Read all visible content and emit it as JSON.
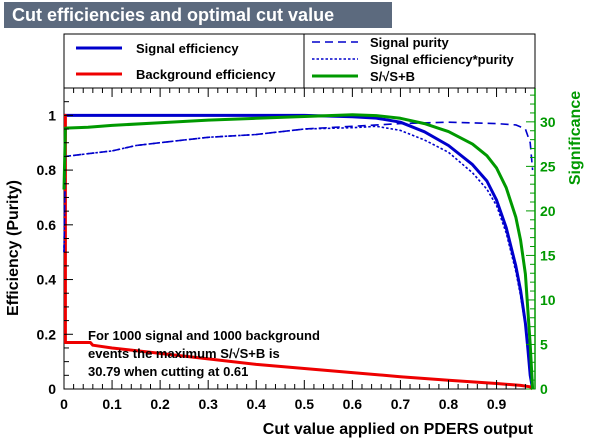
{
  "title": "Cut efficiencies and optimal cut value",
  "chart_data": {
    "type": "line",
    "xlabel": "Cut value applied on PDERS output",
    "ylabel": "Efficiency (Purity)",
    "y2label": "Significance",
    "xlim": [
      0,
      0.98
    ],
    "ylim": [
      0,
      1.1
    ],
    "y2lim": [
      0,
      33.8
    ],
    "xticks": [
      "0",
      "0.1",
      "0.2",
      "0.3",
      "0.4",
      "0.5",
      "0.6",
      "0.7",
      "0.8",
      "0.9"
    ],
    "yticks": [
      "0",
      "0.2",
      "0.4",
      "0.6",
      "0.8",
      "1"
    ],
    "y2ticks": [
      "0",
      "5",
      "10",
      "15",
      "20",
      "25",
      "30"
    ],
    "legend": [
      {
        "label": "Signal efficiency",
        "color": "#0000cc",
        "style": "solid"
      },
      {
        "label": "Background efficiency",
        "color": "#ee0000",
        "style": "solid"
      },
      {
        "label": "Signal purity",
        "color": "#0000cc",
        "style": "dashed"
      },
      {
        "label": "Signal efficiency*purity",
        "color": "#0000cc",
        "style": "dotted"
      },
      {
        "label": "S/√S+B",
        "color": "#009900",
        "style": "solid"
      }
    ],
    "series": [
      {
        "name": "Signal efficiency",
        "axis": "left",
        "color": "#0000cc",
        "style": "solid",
        "x": [
          0,
          0.1,
          0.2,
          0.3,
          0.4,
          0.5,
          0.6,
          0.65,
          0.7,
          0.75,
          0.8,
          0.85,
          0.88,
          0.9,
          0.92,
          0.94,
          0.95,
          0.96,
          0.965,
          0.97,
          0.975
        ],
        "y": [
          1.0,
          1.0,
          1.0,
          1.0,
          1.0,
          1.0,
          0.995,
          0.99,
          0.975,
          0.94,
          0.89,
          0.82,
          0.76,
          0.69,
          0.59,
          0.45,
          0.36,
          0.24,
          0.15,
          0.05,
          0.0
        ]
      },
      {
        "name": "Background efficiency",
        "axis": "left",
        "color": "#ee0000",
        "style": "solid",
        "x": [
          0,
          0.003,
          0.003,
          0.055,
          0.06,
          0.1,
          0.2,
          0.3,
          0.4,
          0.5,
          0.6,
          0.7,
          0.8,
          0.9,
          0.95,
          0.97,
          0.975
        ],
        "y": [
          1.0,
          1.0,
          0.17,
          0.17,
          0.16,
          0.15,
          0.13,
          0.11,
          0.09,
          0.075,
          0.06,
          0.045,
          0.032,
          0.02,
          0.013,
          0.008,
          0.0
        ]
      },
      {
        "name": "Signal purity",
        "axis": "left",
        "color": "#0000cc",
        "style": "dashed",
        "x": [
          0,
          0.003,
          0.05,
          0.1,
          0.15,
          0.2,
          0.3,
          0.4,
          0.5,
          0.6,
          0.7,
          0.8,
          0.9,
          0.94,
          0.96,
          0.97,
          0.975
        ],
        "y": [
          0.5,
          0.85,
          0.86,
          0.87,
          0.89,
          0.9,
          0.92,
          0.93,
          0.95,
          0.96,
          0.97,
          0.975,
          0.97,
          0.965,
          0.95,
          0.9,
          0.8
        ]
      },
      {
        "name": "Signal efficiency*purity",
        "axis": "left",
        "color": "#0000cc",
        "style": "dotted",
        "x": [
          0,
          0.003,
          0.05,
          0.1,
          0.15,
          0.2,
          0.3,
          0.4,
          0.5,
          0.6,
          0.65,
          0.7,
          0.75,
          0.8,
          0.85,
          0.88,
          0.9,
          0.92,
          0.94,
          0.95,
          0.96,
          0.97,
          0.975
        ],
        "y": [
          0.5,
          0.85,
          0.86,
          0.87,
          0.89,
          0.9,
          0.92,
          0.93,
          0.95,
          0.955,
          0.96,
          0.945,
          0.91,
          0.865,
          0.79,
          0.73,
          0.67,
          0.57,
          0.43,
          0.34,
          0.23,
          0.05,
          0.0
        ]
      },
      {
        "name": "S/√S+B",
        "axis": "right",
        "color": "#009900",
        "style": "solid",
        "x": [
          0,
          0.003,
          0.05,
          0.1,
          0.2,
          0.3,
          0.4,
          0.5,
          0.6,
          0.65,
          0.7,
          0.75,
          0.8,
          0.85,
          0.88,
          0.9,
          0.92,
          0.94,
          0.95,
          0.96,
          0.97,
          0.975
        ],
        "y": [
          22.4,
          29.3,
          29.4,
          29.6,
          29.9,
          30.2,
          30.4,
          30.6,
          30.79,
          30.7,
          30.4,
          29.8,
          28.9,
          27.5,
          26.2,
          24.8,
          22.6,
          19.3,
          16.7,
          12.9,
          5.0,
          0.0
        ]
      }
    ],
    "annotation": {
      "line1": "For 1000 signal and 1000 background",
      "line2": "events the maximum S/√S+B is",
      "line3": "30.79 when cutting at  0.61"
    }
  }
}
